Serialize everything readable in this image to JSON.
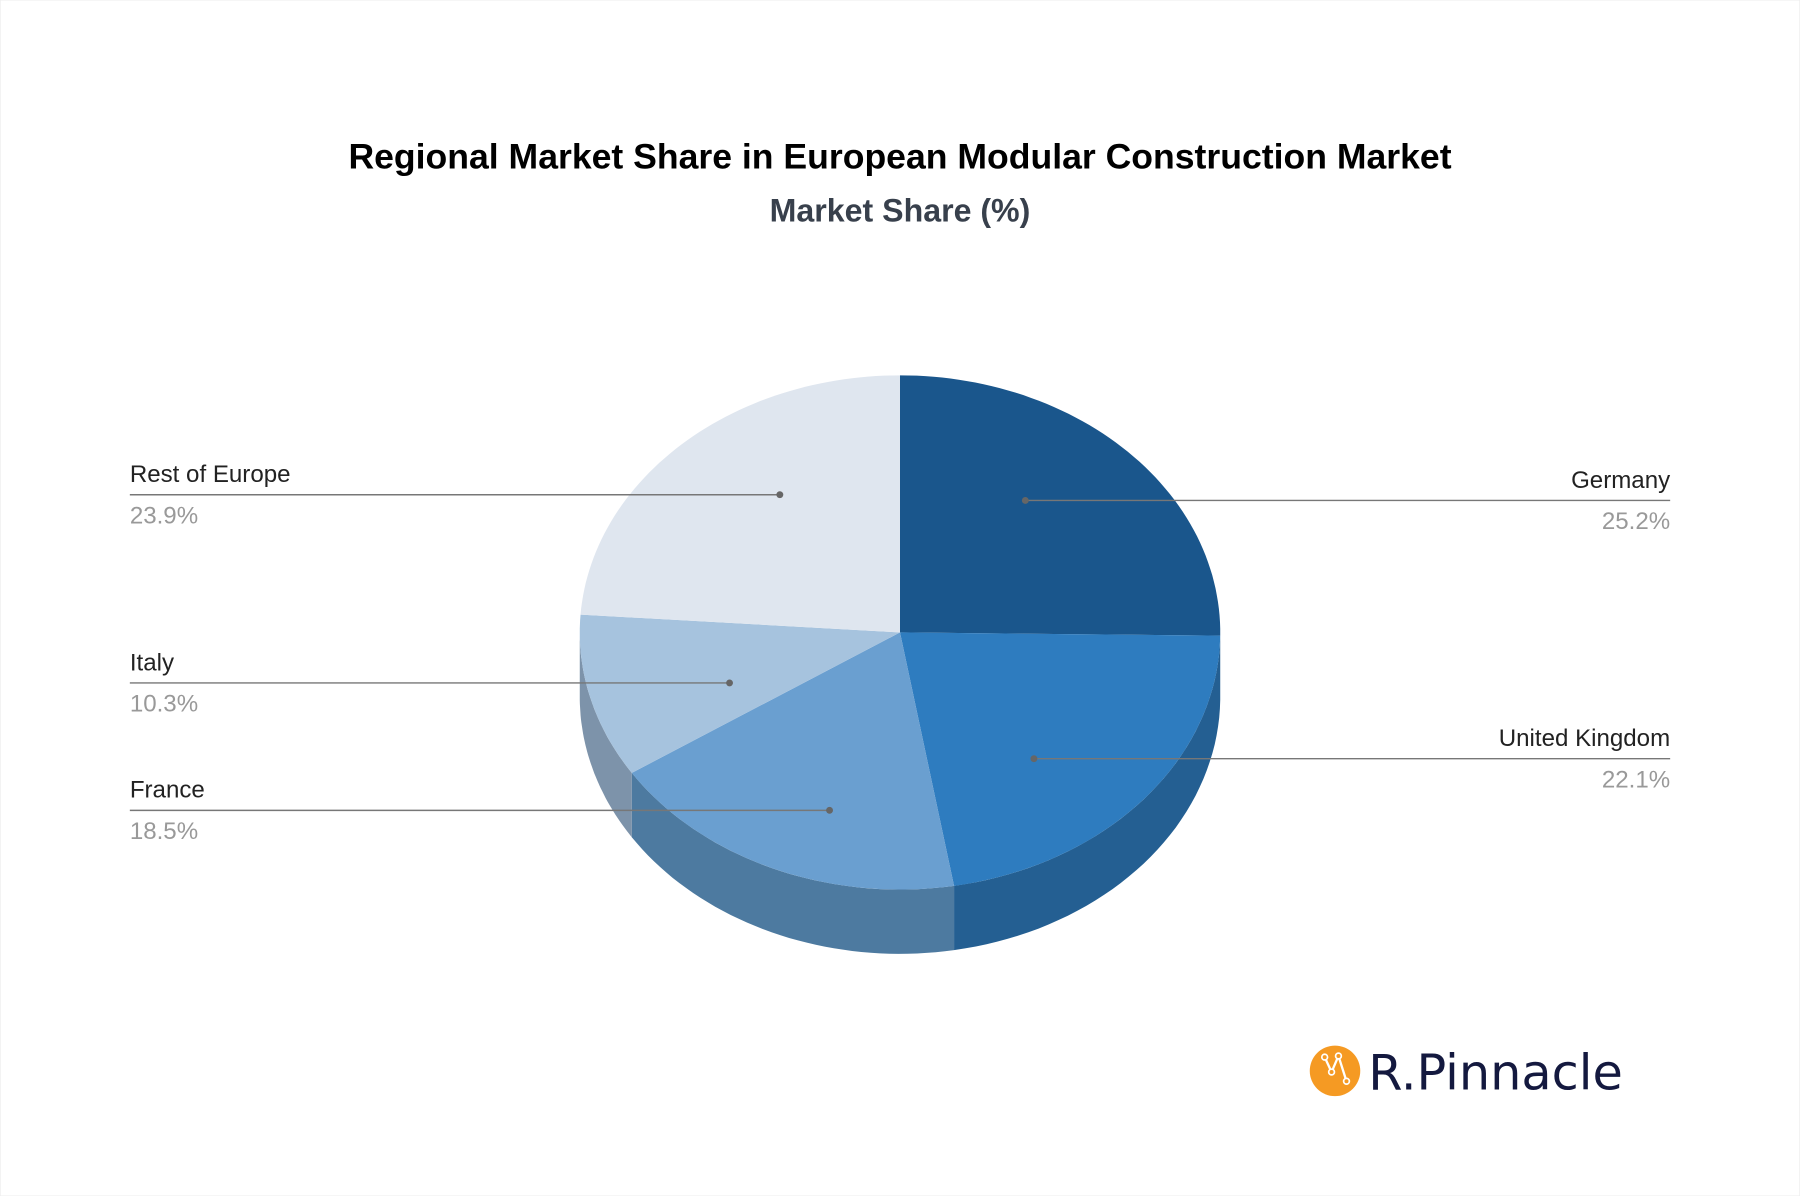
{
  "chart_data": {
    "type": "pie",
    "style": "3d",
    "title": "Regional Market Share in European Modular Construction Market",
    "subtitle": "Market Share (%)",
    "slices": [
      {
        "label": "Germany",
        "value": 25.2,
        "value_label": "25.2%",
        "color": "#1a568c",
        "side_color": "#174d7e",
        "label_side": "right"
      },
      {
        "label": "United Kingdom",
        "value": 22.1,
        "value_label": "22.1%",
        "color": "#2e7cbf",
        "side_color": "#245f92",
        "label_side": "right"
      },
      {
        "label": "France",
        "value": 18.5,
        "value_label": "18.5%",
        "color": "#6a9fd0",
        "side_color": "#4d7aa0",
        "label_side": "left"
      },
      {
        "label": "Italy",
        "value": 10.3,
        "value_label": "10.3%",
        "color": "#a6c3de",
        "side_color": "#7d93aa",
        "label_side": "left"
      },
      {
        "label": "Rest of Europe",
        "value": 23.9,
        "value_label": "23.9%",
        "color": "#dfe6ef",
        "side_color": "#b4bcc6",
        "label_side": "left"
      }
    ]
  },
  "logo": {
    "text": "R.Pinnacle",
    "color": "#f59a23"
  }
}
